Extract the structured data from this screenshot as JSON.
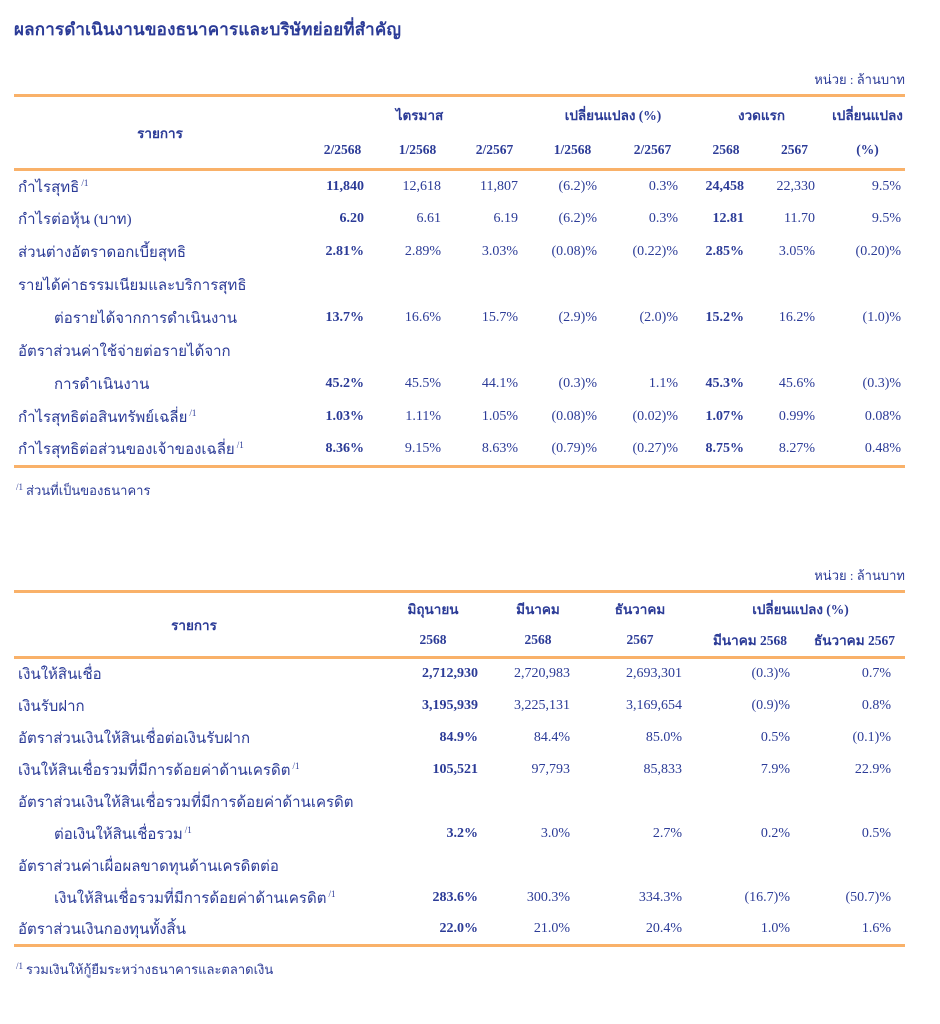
{
  "page": {
    "title": "ผลการดำเนินงานของธนาคารและบริษัทย่อยที่สำคัญ"
  },
  "colors": {
    "text": "#2b3b97",
    "rule": "#f9b169"
  },
  "table1": {
    "unit_label": "หน่วย : ล้านบาท",
    "header": {
      "item_label": "รายการ",
      "groups": [
        {
          "label": "ไตรมาส",
          "colspan": 3
        },
        {
          "label": "เปลี่ยนแปลง (%)",
          "colspan": 2
        },
        {
          "label": "งวดแรก",
          "colspan": 2
        },
        {
          "label": "เปลี่ยนแปลง",
          "colspan": 1
        }
      ],
      "subheaders": [
        "2/2568",
        "1/2568",
        "2/2567",
        "1/2568",
        "2/2567",
        "2568",
        "2567",
        "(%)"
      ]
    },
    "bold_columns": [
      0,
      5
    ],
    "rows": [
      {
        "label": "กำไรสุทธิ",
        "sup": "/1",
        "values": [
          "11,840",
          "12,618",
          "11,807",
          "(6.2)%",
          "0.3%",
          "24,458",
          "22,330",
          "9.5%"
        ]
      },
      {
        "label": "กำไรต่อหุ้น (บาท)",
        "values": [
          "6.20",
          "6.61",
          "6.19",
          "(6.2)%",
          "0.3%",
          "12.81",
          "11.70",
          "9.5%"
        ]
      },
      {
        "label": "ส่วนต่างอัตราดอกเบี้ยสุทธิ",
        "values": [
          "2.81%",
          "2.89%",
          "3.03%",
          "(0.08)%",
          "(0.22)%",
          "2.85%",
          "3.05%",
          "(0.20)%"
        ]
      },
      {
        "label": "รายได้ค่าธรรมเนียมและบริการสุทธิ",
        "values": [
          "",
          "",
          "",
          "",
          "",
          "",
          "",
          ""
        ]
      },
      {
        "label": "ต่อรายได้จากการดำเนินงาน",
        "indent": true,
        "values": [
          "13.7%",
          "16.6%",
          "15.7%",
          "(2.9)%",
          "(2.0)%",
          "15.2%",
          "16.2%",
          "(1.0)%"
        ]
      },
      {
        "label": "อัตราส่วนค่าใช้จ่ายต่อรายได้จาก",
        "values": [
          "",
          "",
          "",
          "",
          "",
          "",
          "",
          ""
        ]
      },
      {
        "label": "การดำเนินงาน",
        "indent": true,
        "values": [
          "45.2%",
          "45.5%",
          "44.1%",
          "(0.3)%",
          "1.1%",
          "45.3%",
          "45.6%",
          "(0.3)%"
        ]
      },
      {
        "label": "กำไรสุทธิต่อสินทรัพย์เฉลี่ย",
        "sup": "/1",
        "values": [
          "1.03%",
          "1.11%",
          "1.05%",
          "(0.08)%",
          "(0.02)%",
          "1.07%",
          "0.99%",
          "0.08%"
        ]
      },
      {
        "label": "กำไรสุทธิต่อส่วนของเจ้าของเฉลี่ย",
        "sup": "/1",
        "values": [
          "8.36%",
          "9.15%",
          "8.63%",
          "(0.79)%",
          "(0.27)%",
          "8.75%",
          "8.27%",
          "0.48%"
        ]
      }
    ],
    "footnote": {
      "sup": "/1",
      "text": "ส่วนที่เป็นของธนาคาร"
    }
  },
  "table2": {
    "unit_label": "หน่วย : ล้านบาท",
    "header": {
      "item_label": "รายการ",
      "groups": [
        {
          "label": "มิถุนายน",
          "colspan": 1
        },
        {
          "label": "มีนาคม",
          "colspan": 1
        },
        {
          "label": "ธันวาคม",
          "colspan": 1
        },
        {
          "label": "เปลี่ยนแปลง (%)",
          "colspan": 2
        }
      ],
      "subheaders": [
        "2568",
        "2568",
        "2567",
        "มีนาคม 2568",
        "ธันวาคม 2567"
      ]
    },
    "bold_columns": [
      0
    ],
    "rows": [
      {
        "label": "เงินให้สินเชื่อ",
        "values": [
          "2,712,930",
          "2,720,983",
          "2,693,301",
          "(0.3)%",
          "0.7%"
        ]
      },
      {
        "label": "เงินรับฝาก",
        "values": [
          "3,195,939",
          "3,225,131",
          "3,169,654",
          "(0.9)%",
          "0.8%"
        ]
      },
      {
        "label": "อัตราส่วนเงินให้สินเชื่อต่อเงินรับฝาก",
        "values": [
          "84.9%",
          "84.4%",
          "85.0%",
          "0.5%",
          "(0.1)%"
        ]
      },
      {
        "label": "เงินให้สินเชื่อรวมที่มีการด้อยค่าด้านเครดิต",
        "sup": "/1",
        "values": [
          "105,521",
          "97,793",
          "85,833",
          "7.9%",
          "22.9%"
        ]
      },
      {
        "label": "อัตราส่วนเงินให้สินเชื่อรวมที่มีการด้อยค่าด้านเครดิต",
        "values": [
          "",
          "",
          "",
          "",
          ""
        ]
      },
      {
        "label": "ต่อเงินให้สินเชื่อรวม",
        "sup": "/1",
        "indent": true,
        "values": [
          "3.2%",
          "3.0%",
          "2.7%",
          "0.2%",
          "0.5%"
        ]
      },
      {
        "label": "อัตราส่วนค่าเผื่อผลขาดทุนด้านเครดิตต่อ",
        "values": [
          "",
          "",
          "",
          "",
          ""
        ]
      },
      {
        "label": "เงินให้สินเชื่อรวมที่มีการด้อยค่าด้านเครดิต",
        "sup": "/1",
        "indent": true,
        "values": [
          "283.6%",
          "300.3%",
          "334.3%",
          "(16.7)%",
          "(50.7)%"
        ]
      },
      {
        "label": "อัตราส่วนเงินกองทุนทั้งสิ้น",
        "values": [
          "22.0%",
          "21.0%",
          "20.4%",
          "1.0%",
          "1.6%"
        ]
      }
    ],
    "footnote": {
      "sup": "/1",
      "text": "รวมเงินให้กู้ยืมระหว่างธนาคารและตลาดเงิน"
    }
  }
}
